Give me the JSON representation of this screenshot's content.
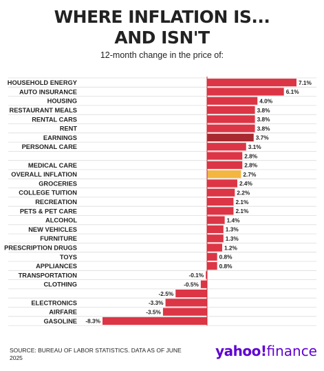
{
  "header": {
    "title_line1": "WHERE INFLATION IS...",
    "title_line2": "AND ISN'T",
    "subtitle": "12-month change in the price of:"
  },
  "footer": {
    "source": "SOURCE: BUREAU OF LABOR STATISTICS. DATA AS OF JUNE 2025",
    "logo_brand": "yahoo!",
    "logo_product": "finance"
  },
  "colors": {
    "default_bar": "#dc3545",
    "earnings_bar": "#a82a30",
    "overall_bar": "#f4b63f",
    "axis": "#cc2a32",
    "gridline": "#dcdcdc"
  },
  "chart_data": {
    "type": "bar",
    "orientation": "horizontal",
    "title": "WHERE INFLATION IS... AND ISN'T",
    "subtitle": "12-month change in the price of:",
    "value_suffix": "%",
    "xlim": [
      -8.3,
      7.1
    ],
    "grid": "horizontal lines per row",
    "categories": [
      "HOUSEHOLD ENERGY",
      "AUTO INSURANCE",
      "HOUSING",
      "RESTAURANT MEALS",
      "RENTAL CARS",
      "RENT",
      "EARNINGS",
      "PERSONAL CARE",
      "",
      "MEDICAL CARE",
      "OVERALL INFLATION",
      "GROCERIES",
      "COLLEGE TUITION",
      "RECREATION",
      "PETS & PET CARE",
      "ALCOHOL",
      "NEW VEHICLES",
      "FURNITURE",
      "PRESCRIPTION DRUGS",
      "TOYS",
      "APPLIANCES",
      "TRANSPORTATION",
      "CLOTHING",
      "",
      "ELECTRONICS",
      "AIRFARE",
      "GASOLINE"
    ],
    "values": [
      7.1,
      6.1,
      4.0,
      3.8,
      3.8,
      3.8,
      3.7,
      3.1,
      2.8,
      2.8,
      2.7,
      2.4,
      2.2,
      2.1,
      2.1,
      1.4,
      1.3,
      1.3,
      1.2,
      0.8,
      0.8,
      -0.1,
      -0.5,
      -2.5,
      -3.3,
      -3.5,
      -8.3
    ],
    "value_labels": [
      "7.1%",
      "6.1%",
      "4.0%",
      "3.8%",
      "3.8%",
      "3.8%",
      "3.7%",
      "3.1%",
      "2.8%",
      "2.8%",
      "2.7%",
      "2.4%",
      "2.2%",
      "2.1%",
      "2.1%",
      "1.4%",
      "1.3%",
      "1.3%",
      "1.2%",
      "0.8%",
      "0.8%",
      "-0.1%",
      "-0.5%",
      "-2.5%",
      "-3.3%",
      "-3.5%",
      "-8.3%"
    ],
    "highlights": {
      "EARNINGS": "earnings_bar",
      "OVERALL INFLATION": "overall_bar"
    }
  }
}
